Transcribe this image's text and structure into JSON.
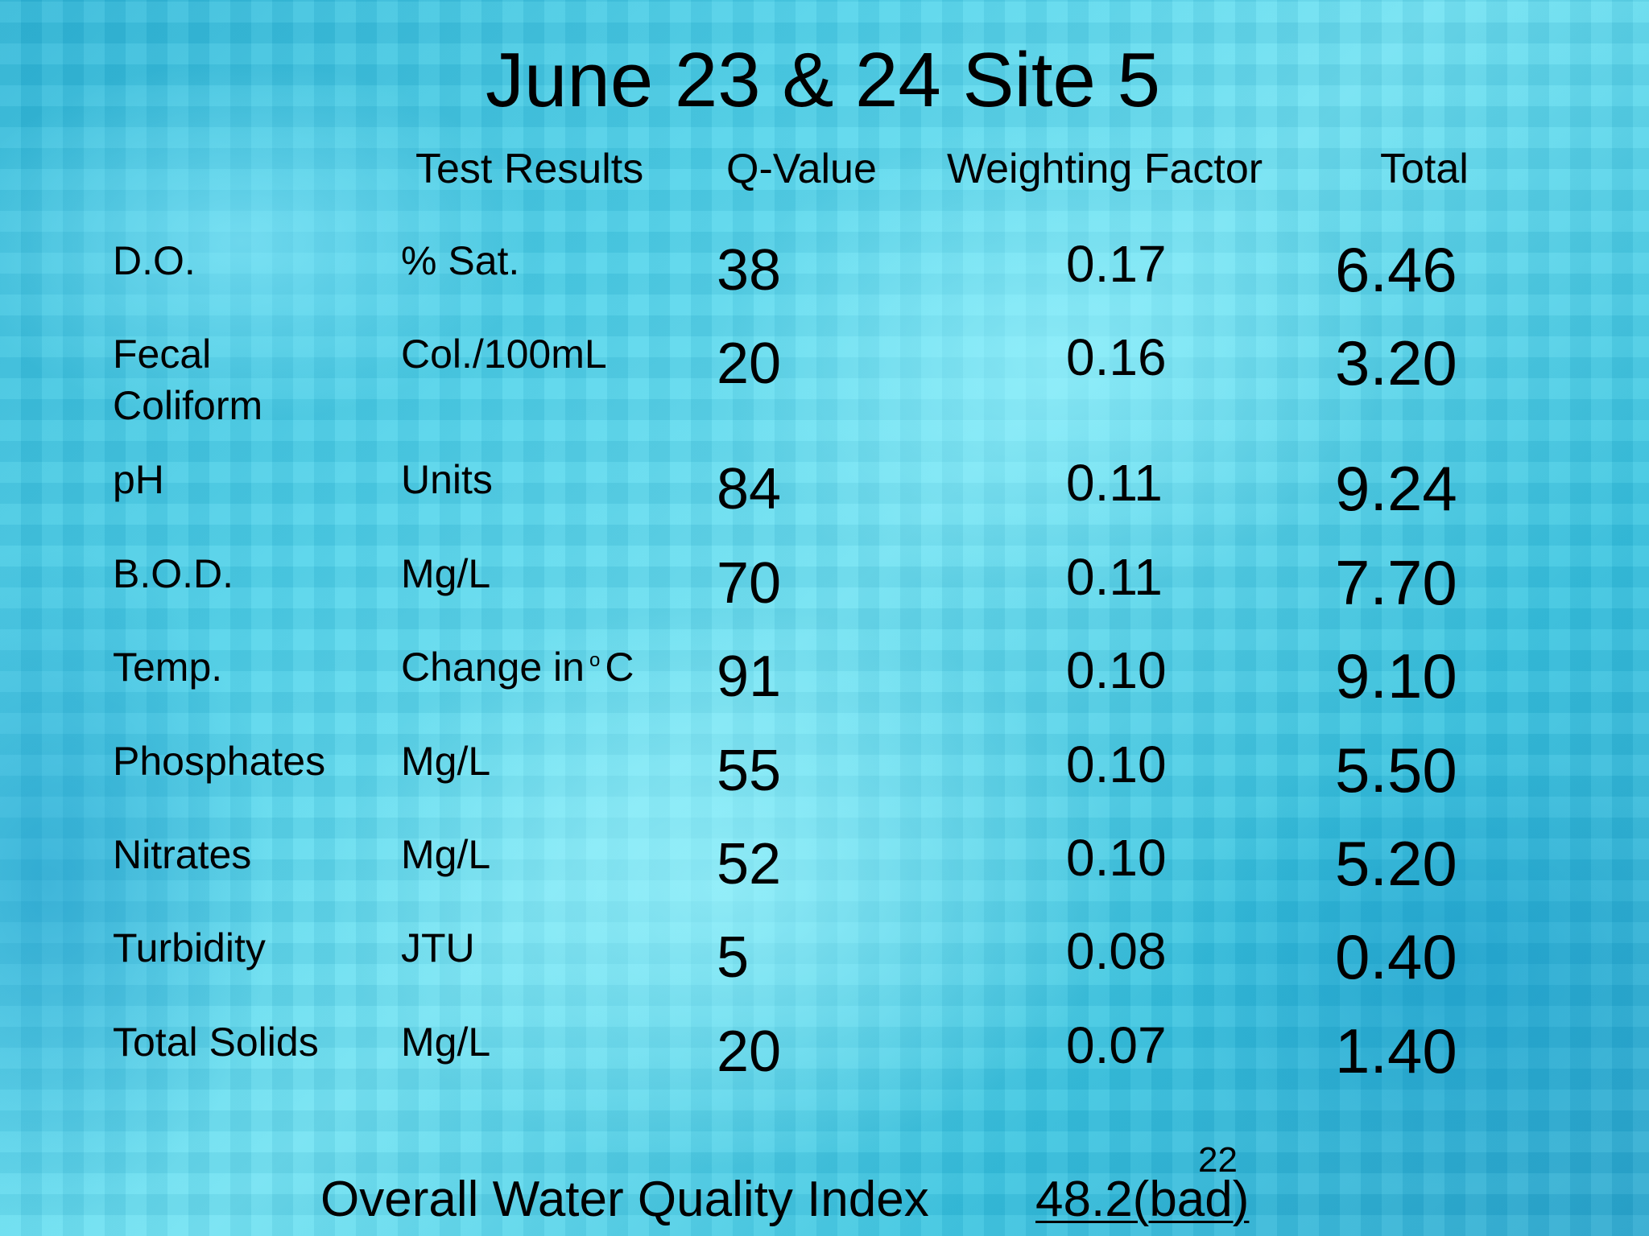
{
  "title": "June 23 & 24 Site 5",
  "headers": {
    "test_results": "Test Results",
    "q_value": "Q-Value",
    "weighting_factor": "Weighting Factor",
    "total": "Total"
  },
  "rows": [
    {
      "param": "D.O.",
      "unit": "% Sat.",
      "q": "38",
      "weight": "0.17",
      "total": "6.46"
    },
    {
      "param": "Fecal Coliform",
      "param_line1": "Fecal",
      "param_line2": "Coliform",
      "unit": "Col./100mL",
      "q": "20",
      "weight": "0.16",
      "total": "3.20"
    },
    {
      "param": "pH",
      "unit": "Units",
      "q": "84",
      "weight": "0.11",
      "total": "9.24"
    },
    {
      "param": "B.O.D.",
      "unit": "Mg/L",
      "q": "70",
      "weight": "0.11",
      "total": "7.70"
    },
    {
      "param": "Temp.",
      "unit_prefix": "Change in",
      "unit_sup": "o",
      "unit_suffix": "C",
      "q": "91",
      "weight": "0.10",
      "total": "9.10"
    },
    {
      "param": "Phosphates",
      "unit": "Mg/L",
      "q": "55",
      "weight": "0.10",
      "total": "5.50"
    },
    {
      "param": "Nitrates",
      "unit": "Mg/L",
      "q": "52",
      "weight": "0.10",
      "total": "5.20"
    },
    {
      "param": "Turbidity",
      "unit": "JTU",
      "q": "5",
      "weight": "0.08",
      "total": "0.40"
    },
    {
      "param": "Total Solids",
      "unit": "Mg/L",
      "q": "20",
      "weight": "0.07",
      "total": "1.40"
    }
  ],
  "footer": {
    "label": "Overall Water Quality Index",
    "value": "48.2(bad)"
  },
  "page_number": "22"
}
